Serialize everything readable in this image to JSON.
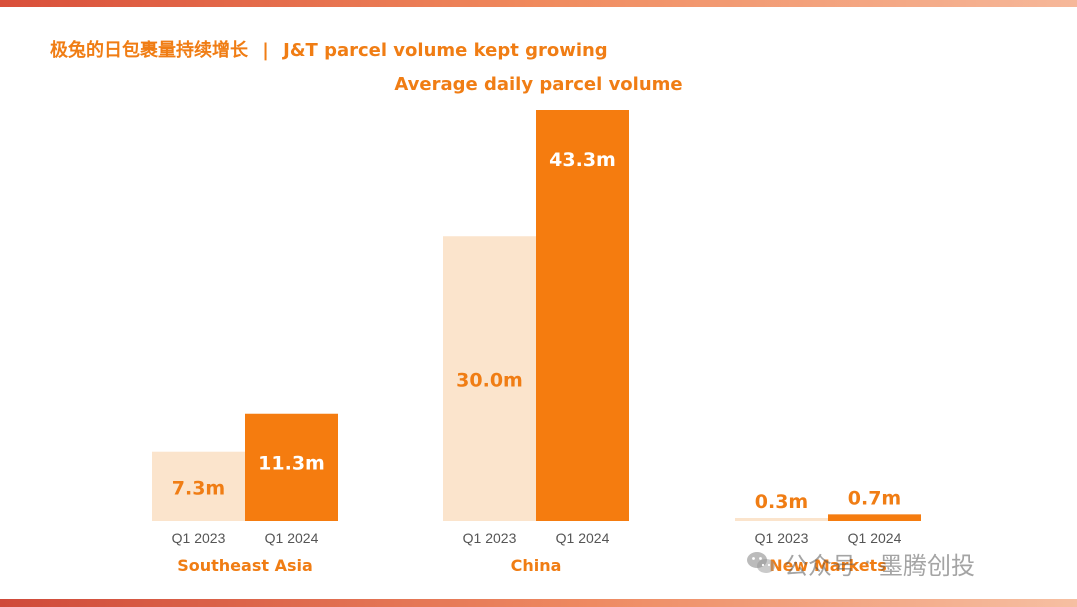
{
  "header": {
    "cn_title": "极兔的日包裹量持续增长",
    "separator": "|",
    "en_title": "J&T parcel volume kept growing"
  },
  "chart_data": {
    "type": "bar",
    "title": "Average daily parcel volume",
    "unit": "m",
    "series_labels": [
      "Q1 2023",
      "Q1 2024"
    ],
    "ylim": [
      0,
      43.3
    ],
    "grid": false,
    "groups": [
      {
        "name": "Southeast Asia",
        "values": [
          7.3,
          11.3
        ],
        "labels": [
          "7.3m",
          "11.3m"
        ]
      },
      {
        "name": "China",
        "values": [
          30.0,
          43.3
        ],
        "labels": [
          "30.0m",
          "43.3m"
        ]
      },
      {
        "name": "New Markets",
        "values": [
          0.3,
          0.7
        ],
        "labels": [
          "0.3m",
          "0.7m"
        ]
      }
    ],
    "colors": {
      "q1_2023": "#fbe4cc",
      "q1_2024": "#f57c0f",
      "text": "#f07d14",
      "tick": "#555555"
    }
  },
  "watermark": {
    "icon": "wechat-icon",
    "text_left": "公众号",
    "dot": "·",
    "text_right": "墨腾创投"
  }
}
